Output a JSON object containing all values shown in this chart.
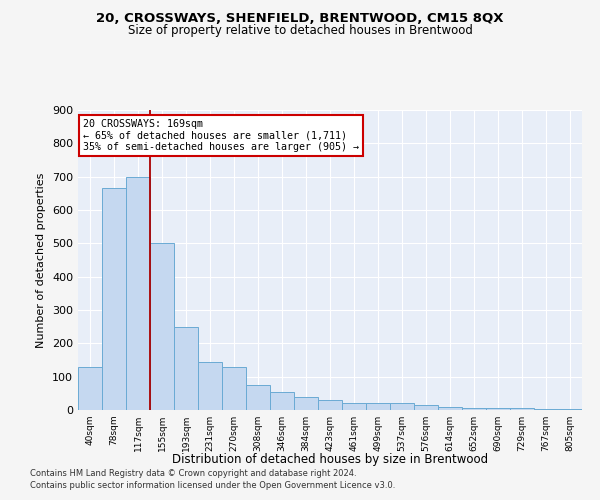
{
  "title": "20, CROSSWAYS, SHENFIELD, BRENTWOOD, CM15 8QX",
  "subtitle": "Size of property relative to detached houses in Brentwood",
  "xlabel": "Distribution of detached houses by size in Brentwood",
  "ylabel": "Number of detached properties",
  "categories": [
    "40sqm",
    "78sqm",
    "117sqm",
    "155sqm",
    "193sqm",
    "231sqm",
    "270sqm",
    "308sqm",
    "346sqm",
    "384sqm",
    "423sqm",
    "461sqm",
    "499sqm",
    "537sqm",
    "576sqm",
    "614sqm",
    "652sqm",
    "690sqm",
    "729sqm",
    "767sqm",
    "805sqm"
  ],
  "values": [
    130,
    665,
    700,
    500,
    250,
    145,
    130,
    75,
    55,
    40,
    30,
    20,
    20,
    20,
    15,
    10,
    5,
    5,
    5,
    3,
    2
  ],
  "bar_color": "#c5d8f0",
  "bar_edge_color": "#6aaad4",
  "marker_label": "20 CROSSWAYS: 169sqm",
  "annotation_line1": "← 65% of detached houses are smaller (1,711)",
  "annotation_line2": "35% of semi-detached houses are larger (905) →",
  "annotation_box_color": "#ffffff",
  "annotation_box_edge": "#cc0000",
  "vline_color": "#aa0000",
  "vline_x": 3.0,
  "ylim": [
    0,
    900
  ],
  "yticks": [
    0,
    100,
    200,
    300,
    400,
    500,
    600,
    700,
    800,
    900
  ],
  "footer1": "Contains HM Land Registry data © Crown copyright and database right 2024.",
  "footer2": "Contains public sector information licensed under the Open Government Licence v3.0.",
  "plot_bg_color": "#e8eef8",
  "grid_color": "#ffffff",
  "fig_bg_color": "#f5f5f5"
}
